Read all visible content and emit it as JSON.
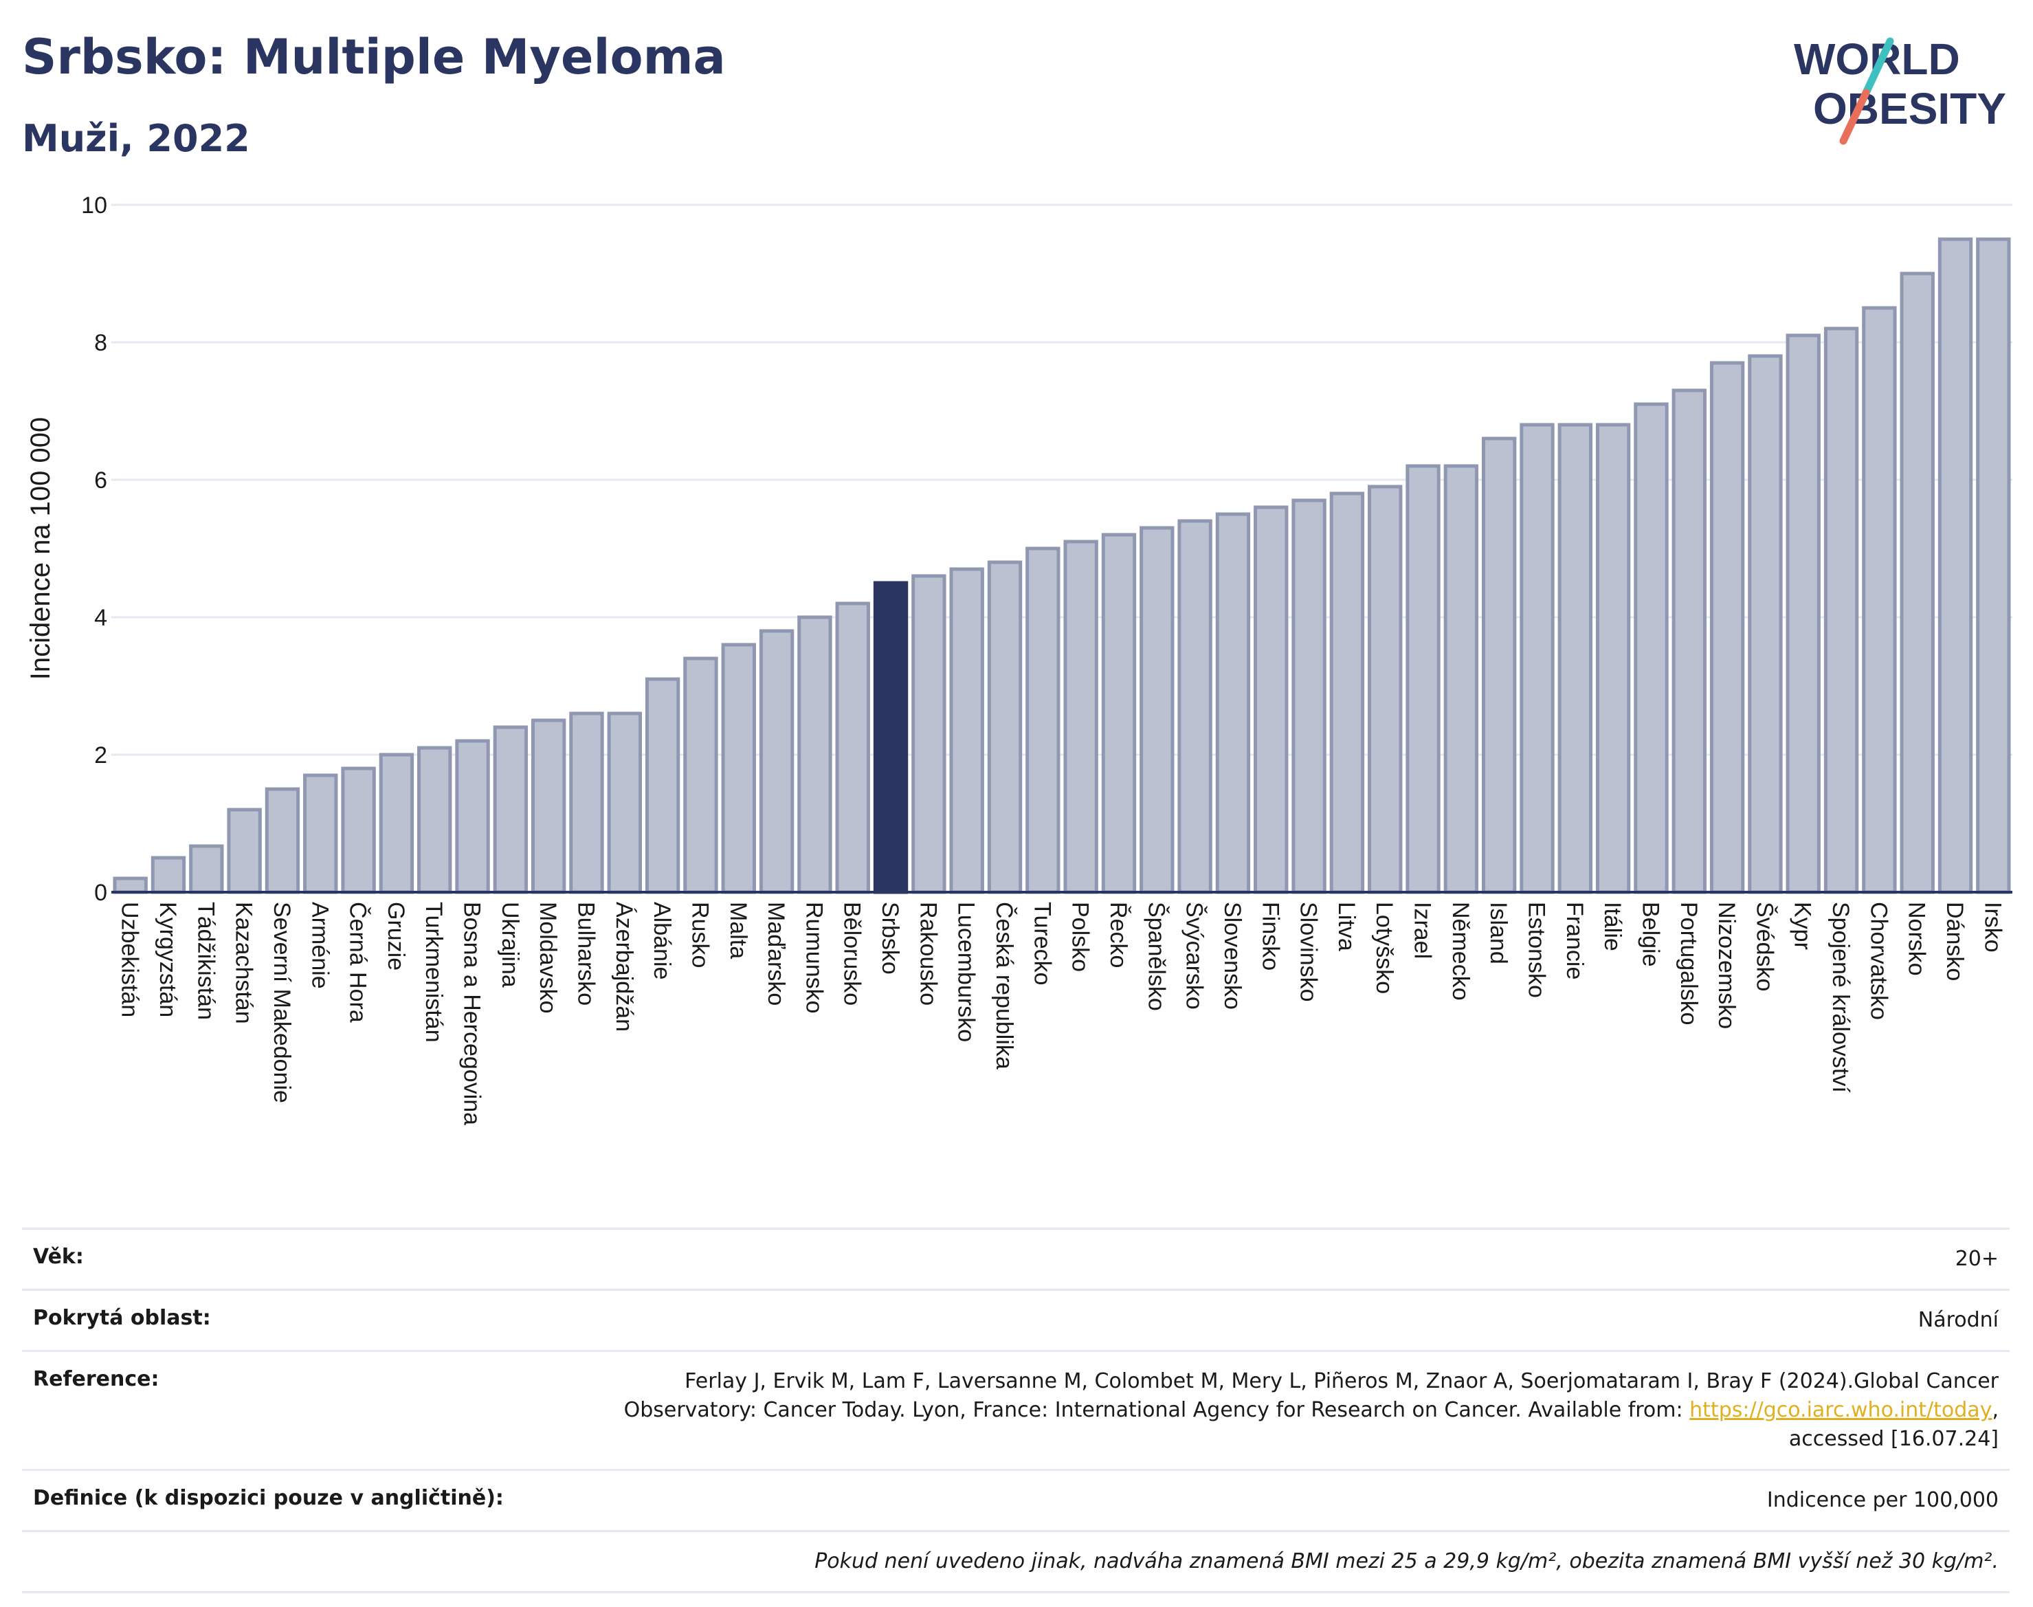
{
  "header": {
    "title": "Srbsko: Multiple Myeloma",
    "subtitle": "Muži, 2022",
    "logo_line1": "WORLD",
    "logo_line2": "OBESITY"
  },
  "chart_data": {
    "type": "bar",
    "ylabel": "Incidence na 100 000",
    "xlabel": "",
    "ylim": [
      0,
      10
    ],
    "yticks": [
      0,
      2,
      4,
      6,
      8,
      10
    ],
    "grid": true,
    "highlight": "Srbsko",
    "colors": {
      "bar": "#bcc1d1",
      "bar_edge": "#9097b1",
      "highlight": "#2b3561",
      "grid": "#e6e8ef",
      "axis": "#2b3561"
    },
    "categories": [
      "Uzbekistán",
      "Kyrgyzstán",
      "Tádžikistán",
      "Kazachstán",
      "Severní Makedonie",
      "Arménie",
      "Černá Hora",
      "Gruzie",
      "Turkmenistán",
      "Bosna a Hercegovina",
      "Ukrajina",
      "Moldavsko",
      "Bulharsko",
      "Ázerbajdžán",
      "Albánie",
      "Rusko",
      "Malta",
      "Maďarsko",
      "Rumunsko",
      "Bělorusko",
      "Srbsko",
      "Rakousko",
      "Lucembursko",
      "Česká republika",
      "Turecko",
      "Polsko",
      "Řecko",
      "Španělsko",
      "Švýcarsko",
      "Slovensko",
      "Finsko",
      "Slovinsko",
      "Litva",
      "Lotyšsko",
      "Izrael",
      "Německo",
      "Island",
      "Estonsko",
      "Francie",
      "Itálie",
      "Belgie",
      "Portugalsko",
      "Nizozemsko",
      "Švédsko",
      "Kypr",
      "Spojené království",
      "Chorvatsko",
      "Norsko",
      "Dánsko",
      "Irsko"
    ],
    "values": [
      0.2,
      0.5,
      0.67,
      1.2,
      1.5,
      1.7,
      1.8,
      2.0,
      2.1,
      2.2,
      2.4,
      2.5,
      2.6,
      2.6,
      3.1,
      3.4,
      3.6,
      3.8,
      4.0,
      4.2,
      4.5,
      4.6,
      4.7,
      4.8,
      5.0,
      5.1,
      5.2,
      5.3,
      5.4,
      5.5,
      5.6,
      5.7,
      5.8,
      5.9,
      6.2,
      6.2,
      6.6,
      6.8,
      6.8,
      6.8,
      7.1,
      7.3,
      7.7,
      7.8,
      8.1,
      8.2,
      8.5,
      9.0,
      9.5,
      9.5
    ]
  },
  "meta": {
    "age_label": "Věk:",
    "age_value": "20+",
    "area_label": "Pokrytá oblast:",
    "area_value": "Národní",
    "ref_label": "Reference:",
    "ref_text_1": "Ferlay J, Ervik M, Lam F, Laversanne M, Colombet M, Mery L, Piñeros M, Znaor A, Soerjomataram I, Bray F (2024).Global Cancer Observatory: Cancer Today. Lyon, France: International Agency for Research on Cancer. Available from: ",
    "ref_link": "https://gco.iarc.who.int/today",
    "ref_text_2": ", accessed [16.07.24]",
    "def_label": "Definice (k dispozici pouze v angličtině):",
    "def_value": "Indicence per 100,000",
    "note": "Pokud není uvedeno jinak, nadváha znamená BMI mezi 25 a 29,9 kg/m², obezita znamená BMI vyšší než 30 kg/m²."
  }
}
